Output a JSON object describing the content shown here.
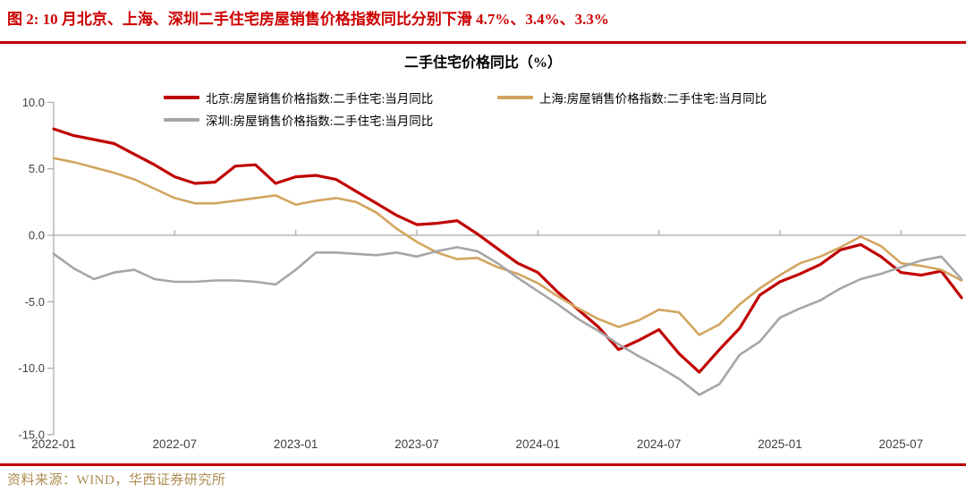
{
  "header": {
    "title": "图 2: 10 月北京、上海、深圳二手住宅房屋销售价格指数同比分别下滑 4.7%、3.4%、3.3%"
  },
  "footer": {
    "source": "资料来源：WIND，华西证券研究所"
  },
  "colors": {
    "accent_red": "#C00000",
    "title_red": "#CC0000",
    "source_gold": "#AD8C52",
    "axis_gray": "#A8A8A8",
    "label_gray": "#3F3F3F"
  },
  "chart_data": {
    "type": "line",
    "title": "二手住宅价格同比（%）",
    "xlabel": "",
    "ylabel": "",
    "ylim": [
      -15,
      10
    ],
    "grid": false,
    "legend_position": "top",
    "y_ticks": [
      10,
      5,
      0,
      -5,
      -10,
      -15
    ],
    "y_tick_labels": [
      "10.0",
      "5.0",
      "0.0",
      "-5.0",
      "-10.0",
      "-15.0"
    ],
    "x_tick_labels": [
      "2022-01",
      "2022-07",
      "2023-01",
      "2023-07",
      "2024-01",
      "2024-07",
      "2025-01",
      "2025-07"
    ],
    "x": [
      "2022-01",
      "2022-02",
      "2022-03",
      "2022-04",
      "2022-05",
      "2022-06",
      "2022-07",
      "2022-08",
      "2022-09",
      "2022-10",
      "2022-11",
      "2022-12",
      "2023-01",
      "2023-02",
      "2023-03",
      "2023-04",
      "2023-05",
      "2023-06",
      "2023-07",
      "2023-08",
      "2023-09",
      "2023-10",
      "2023-11",
      "2023-12",
      "2024-01",
      "2024-02",
      "2024-03",
      "2024-04",
      "2024-05",
      "2024-06",
      "2024-07",
      "2024-08",
      "2024-09",
      "2024-10",
      "2024-11",
      "2024-12",
      "2025-01",
      "2025-02",
      "2025-03",
      "2025-04",
      "2025-05",
      "2025-06",
      "2025-07",
      "2025-08",
      "2025-09",
      "2025-10"
    ],
    "series": [
      {
        "id": "beijing",
        "name": "北京:房屋销售价格指数:二手住宅:当月同比",
        "color": "#C00000",
        "width": 3.2,
        "values": [
          8.0,
          7.5,
          7.2,
          6.9,
          6.1,
          5.3,
          4.4,
          3.9,
          4.0,
          5.2,
          5.3,
          3.9,
          4.4,
          4.5,
          4.2,
          3.3,
          2.4,
          1.5,
          0.8,
          0.9,
          1.1,
          0.1,
          -1.0,
          -2.1,
          -2.8,
          -4.3,
          -5.6,
          -6.9,
          -8.6,
          -7.9,
          -7.1,
          -8.9,
          -10.3,
          -8.6,
          -7.0,
          -4.5,
          -3.5,
          -2.9,
          -2.2,
          -1.1,
          -0.7,
          -1.6,
          -2.8,
          -3.0,
          -2.7,
          -4.7
        ]
      },
      {
        "id": "shanghai",
        "name": "上海:房屋销售价格指数:二手住宅:当月同比",
        "color": "#D2A55E",
        "width": 2.6,
        "values": [
          5.8,
          5.5,
          5.1,
          4.7,
          4.2,
          3.5,
          2.8,
          2.4,
          2.4,
          2.6,
          2.8,
          3.0,
          2.3,
          2.6,
          2.8,
          2.5,
          1.7,
          0.5,
          -0.5,
          -1.3,
          -1.8,
          -1.7,
          -2.4,
          -2.9,
          -3.6,
          -4.6,
          -5.5,
          -6.3,
          -6.9,
          -6.4,
          -5.6,
          -5.8,
          -7.5,
          -6.7,
          -5.2,
          -4.0,
          -3.0,
          -2.1,
          -1.6,
          -0.9,
          -0.1,
          -0.8,
          -2.1,
          -2.3,
          -2.6,
          -3.4
        ]
      },
      {
        "id": "shenzhen",
        "name": "深圳:房屋销售价格指数:二手住宅:当月同比",
        "color": "#A6A6A6",
        "width": 2.6,
        "values": [
          -1.4,
          -2.5,
          -3.3,
          -2.8,
          -2.6,
          -3.3,
          -3.5,
          -3.5,
          -3.4,
          -3.4,
          -3.5,
          -3.7,
          -2.6,
          -1.3,
          -1.3,
          -1.4,
          -1.5,
          -1.3,
          -1.6,
          -1.2,
          -0.9,
          -1.2,
          -2.1,
          -3.2,
          -4.2,
          -5.2,
          -6.3,
          -7.2,
          -8.2,
          -9.1,
          -9.9,
          -10.8,
          -12.0,
          -11.2,
          -9.0,
          -8.0,
          -6.2,
          -5.5,
          -4.9,
          -4.0,
          -3.3,
          -2.9,
          -2.4,
          -1.9,
          -1.6,
          -3.3
        ]
      }
    ]
  }
}
